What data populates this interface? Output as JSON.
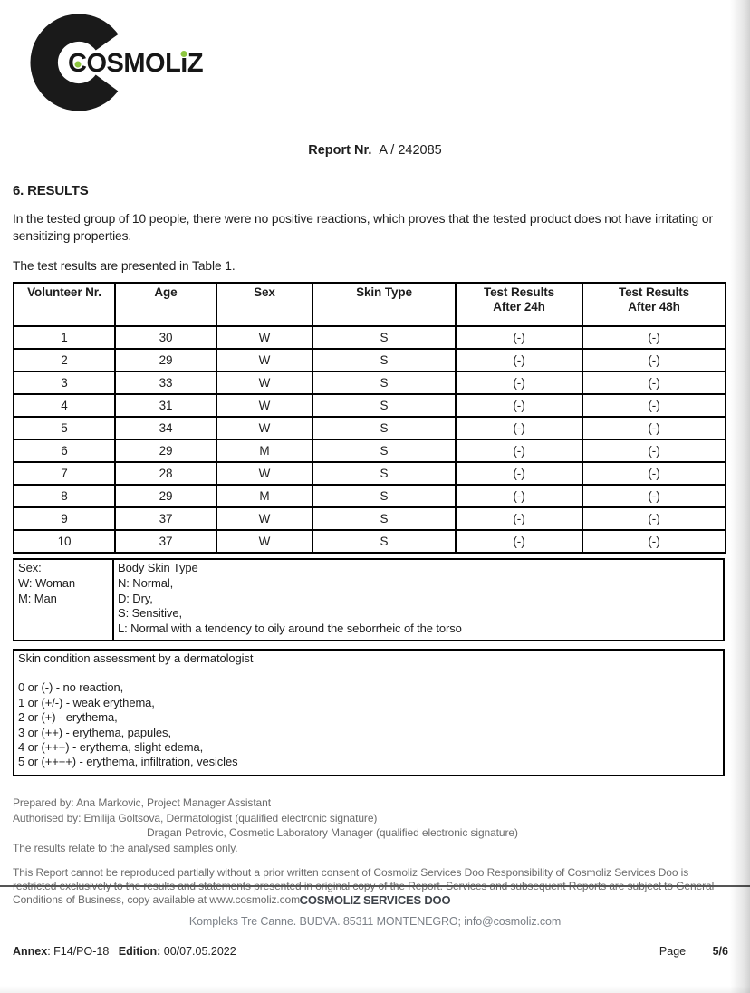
{
  "logo": {
    "brand_parts": {
      "c": "C",
      "mid": "OSMOL",
      "i": "i",
      "z": "Z"
    },
    "accent_color": "#8dc63f"
  },
  "report": {
    "label": "Report Nr.",
    "number": "A / 242085"
  },
  "section": {
    "heading": "6. RESULTS",
    "paragraph1": "In the tested group of 10 people, there were no positive reactions, which proves that the tested product does not have irritating or sensitizing properties.",
    "paragraph2": "The test results are presented in Table 1."
  },
  "results_table": {
    "headers": [
      "Volunteer Nr.",
      "Age",
      "Sex",
      "Skin Type",
      "Test Results\nAfter 24h",
      "Test Results\nAfter 48h"
    ],
    "rows": [
      [
        "1",
        "30",
        "W",
        "S",
        "(-)",
        "(-)"
      ],
      [
        "2",
        "29",
        "W",
        "S",
        "(-)",
        "(-)"
      ],
      [
        "3",
        "33",
        "W",
        "S",
        "(-)",
        "(-)"
      ],
      [
        "4",
        "31",
        "W",
        "S",
        "(-)",
        "(-)"
      ],
      [
        "5",
        "34",
        "W",
        "S",
        "(-)",
        "(-)"
      ],
      [
        "6",
        "29",
        "M",
        "S",
        "(-)",
        "(-)"
      ],
      [
        "7",
        "28",
        "W",
        "S",
        "(-)",
        "(-)"
      ],
      [
        "8",
        "29",
        "M",
        "S",
        "(-)",
        "(-)"
      ],
      [
        "9",
        "37",
        "W",
        "S",
        "(-)",
        "(-)"
      ],
      [
        "10",
        "37",
        "W",
        "S",
        "(-)",
        "(-)"
      ]
    ]
  },
  "sex_legend": {
    "left_lines": [
      "Sex:",
      "W: Woman",
      "M: Man"
    ],
    "right_lines": [
      "Body Skin Type",
      "N: Normal,",
      "D: Dry,",
      "S: Sensitive,",
      "L: Normal with a tendency to oily around the seborrheic of the torso"
    ]
  },
  "assessment_box": {
    "title": "Skin condition assessment by a dermatologist",
    "lines": [
      "0 or (-) - no reaction,",
      "1 or (+/-) - weak erythema,",
      "2 or (+) - erythema,",
      "3 or (++) - erythema, papules,",
      "4 or (+++) - erythema, slight edema,",
      "5 or (++++) - erythema, infiltration, vesicles"
    ]
  },
  "signatures": {
    "prepared": "Prepared by:  Ana Markovic, Project Manager Assistant",
    "authorised": "Authorised by:  Emilija Goltsova, Dermatologist (qualified electronic signature)",
    "authorised2": "Dragan Petrovic, Cosmetic Laboratory Manager (qualified electronic signature)",
    "note": "The results relate to the analysed samples only."
  },
  "disclaimer": "This Report cannot be reproduced partially without a prior written consent of Cosmoliz Services Doo Responsibility of Cosmoliz Services Doo is restricted exclusively to the results and statements presented in original copy of the Report. Services and subsequent Reports are subject to General Conditions of Business, copy available at www.cosmoliz.com",
  "footer": {
    "company": "COSMOLIZ SERVICES DOO",
    "address": "Kompleks Tre Canne. BUDVA. 85311 MONTENEGRO; info@cosmoliz.com",
    "annex_label": "Annex",
    "annex_value": ": F14/PO-18",
    "edition_label": "Edition:",
    "edition_value": " 00/07.05.2022",
    "page_label": "Page",
    "page_value": "5/6"
  }
}
